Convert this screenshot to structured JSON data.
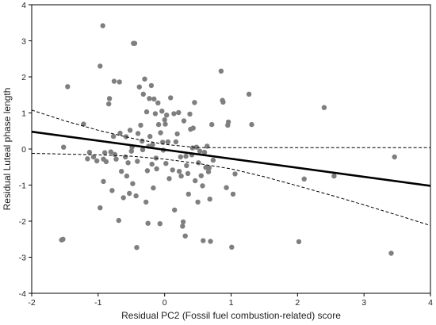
{
  "chart_data": {
    "type": "scatter",
    "xlabel": "Residual PC2 (Fossil fuel combustion-related) score",
    "ylabel": "Residual Luteal phase length",
    "xlim": [
      -2,
      4
    ],
    "ylim": [
      -4,
      4
    ],
    "x_ticks": [
      -2,
      -1,
      0,
      1,
      2,
      3,
      4
    ],
    "y_ticks": [
      -4,
      -3,
      -2,
      -1,
      0,
      1,
      2,
      3,
      4
    ],
    "grid": false,
    "point_color": "#7f7f7f",
    "regression_line": {
      "x": [
        -2,
        4
      ],
      "y": [
        0.48,
        -1.02
      ],
      "color": "#000000",
      "style": "solid"
    },
    "confidence_band": {
      "style": "dashed",
      "color": "#000000",
      "upper": {
        "x": [
          -2,
          -1.5,
          -1,
          -0.5,
          0,
          0.5,
          1,
          1.5,
          2,
          2.5,
          3,
          3.5,
          4
        ],
        "y": [
          1.08,
          0.78,
          0.52,
          0.3,
          0.13,
          0.04,
          0.04,
          0.04,
          0.04,
          0.04,
          0.04,
          0.04,
          0.04
        ]
      },
      "lower": {
        "x": [
          -2,
          -1.5,
          -1,
          -0.5,
          0,
          0.5,
          1,
          1.5,
          2,
          2.5,
          3,
          3.5,
          4
        ],
        "y": [
          -0.12,
          -0.14,
          -0.16,
          -0.2,
          -0.28,
          -0.4,
          -0.55,
          -0.77,
          -1.02,
          -1.28,
          -1.55,
          -1.83,
          -2.12
        ]
      }
    },
    "points": [
      [
        -1.55,
        -2.52
      ],
      [
        -1.53,
        -2.5
      ],
      [
        -1.52,
        0.05
      ],
      [
        -1.46,
        1.73
      ],
      [
        -1.22,
        0.69
      ],
      [
        -1.16,
        -0.27
      ],
      [
        -1.13,
        -0.09
      ],
      [
        -1.07,
        -0.22
      ],
      [
        -1.02,
        -0.33
      ],
      [
        -0.97,
        2.3
      ],
      [
        -0.97,
        -1.63
      ],
      [
        -0.93,
        3.42
      ],
      [
        -0.92,
        -0.28
      ],
      [
        -0.92,
        -0.9
      ],
      [
        -0.9,
        -0.1
      ],
      [
        -0.88,
        -0.35
      ],
      [
        -0.84,
        1.25
      ],
      [
        -0.83,
        1.4
      ],
      [
        -0.81,
        -0.08
      ],
      [
        -0.79,
        -1.15
      ],
      [
        -0.77,
        0.35
      ],
      [
        -0.76,
        1.88
      ],
      [
        -0.75,
        -0.15
      ],
      [
        -0.73,
        -0.28
      ],
      [
        -0.69,
        -1.98
      ],
      [
        -0.68,
        1.86
      ],
      [
        -0.67,
        0.44
      ],
      [
        -0.65,
        -0.62
      ],
      [
        -0.62,
        -1.35
      ],
      [
        -0.59,
        -0.22
      ],
      [
        -0.58,
        0.34
      ],
      [
        -0.57,
        -0.75
      ],
      [
        -0.55,
        -0.38
      ],
      [
        -0.53,
        -1.23
      ],
      [
        -0.52,
        0.52
      ],
      [
        -0.5,
        -0.06
      ],
      [
        -0.49,
        0.05
      ],
      [
        -0.48,
        -0.96
      ],
      [
        -0.47,
        2.93
      ],
      [
        -0.45,
        2.93
      ],
      [
        -0.43,
        -1.3
      ],
      [
        -0.42,
        -2.73
      ],
      [
        -0.41,
        -0.34
      ],
      [
        -0.4,
        0.43
      ],
      [
        -0.38,
        1.72
      ],
      [
        -0.36,
        0.66
      ],
      [
        -0.34,
        0.22
      ],
      [
        -0.33,
        -0.02
      ],
      [
        -0.32,
        1.52
      ],
      [
        -0.3,
        1.94
      ],
      [
        -0.28,
        -1.47
      ],
      [
        -0.27,
        1.03
      ],
      [
        -0.26,
        -0.6
      ],
      [
        -0.25,
        -2.06
      ],
      [
        -0.24,
        0.08
      ],
      [
        -0.23,
        1.4
      ],
      [
        -0.22,
        0.35
      ],
      [
        -0.2,
        1.76
      ],
      [
        -0.19,
        -0.42
      ],
      [
        -0.18,
        0.12
      ],
      [
        -0.17,
        -1.08
      ],
      [
        -0.16,
        1.39
      ],
      [
        -0.14,
        0.98
      ],
      [
        -0.13,
        -0.25
      ],
      [
        -0.12,
        -0.55
      ],
      [
        -0.1,
        1.28
      ],
      [
        -0.09,
        0.68
      ],
      [
        -0.07,
        -2.07
      ],
      [
        -0.06,
        0.45
      ],
      [
        -0.04,
        1.05
      ],
      [
        -0.03,
        0.19
      ],
      [
        -0.02,
        -0.03
      ],
      [
        0.0,
        0.81
      ],
      [
        0.01,
        0.69
      ],
      [
        0.02,
        -0.4
      ],
      [
        0.03,
        0.94
      ],
      [
        0.05,
        0.2
      ],
      [
        0.07,
        -0.82
      ],
      [
        0.09,
        1.42
      ],
      [
        0.12,
        -0.58
      ],
      [
        0.14,
        0.98
      ],
      [
        0.15,
        -1.69
      ],
      [
        0.17,
        0.2
      ],
      [
        0.19,
        0.42
      ],
      [
        0.21,
        1.01
      ],
      [
        0.22,
        -0.62
      ],
      [
        0.24,
        -0.22
      ],
      [
        0.25,
        -0.75
      ],
      [
        0.27,
        -2.14
      ],
      [
        0.28,
        -2.02
      ],
      [
        0.29,
        0.78
      ],
      [
        0.31,
        -2.41
      ],
      [
        0.32,
        -0.2
      ],
      [
        0.33,
        -0.46
      ],
      [
        0.35,
        -0.68
      ],
      [
        0.36,
        -1.25
      ],
      [
        0.38,
        0.97
      ],
      [
        0.39,
        0.55
      ],
      [
        0.41,
        -0.16
      ],
      [
        0.42,
        0.03
      ],
      [
        0.43,
        0.58
      ],
      [
        0.45,
        1.29
      ],
      [
        0.46,
        -0.88
      ],
      [
        0.48,
        0.05
      ],
      [
        0.5,
        -1.47
      ],
      [
        0.51,
        -0.38
      ],
      [
        0.53,
        -0.06
      ],
      [
        0.55,
        -0.74
      ],
      [
        0.57,
        -1.02
      ],
      [
        0.58,
        -2.54
      ],
      [
        0.6,
        -0.09
      ],
      [
        0.62,
        -0.51
      ],
      [
        0.64,
        0.08
      ],
      [
        0.66,
        -0.63
      ],
      [
        0.67,
        -0.52
      ],
      [
        0.68,
        -1.39
      ],
      [
        0.69,
        -2.56
      ],
      [
        0.71,
        0.68
      ],
      [
        0.73,
        -0.31
      ],
      [
        0.85,
        2.16
      ],
      [
        0.87,
        1.35
      ],
      [
        0.88,
        1.3
      ],
      [
        0.93,
        -1.07
      ],
      [
        0.95,
        0.66
      ],
      [
        0.96,
        0.75
      ],
      [
        1.01,
        -2.72
      ],
      [
        1.03,
        -1.25
      ],
      [
        1.06,
        -0.69
      ],
      [
        1.27,
        1.52
      ],
      [
        1.31,
        0.68
      ],
      [
        2.02,
        -2.57
      ],
      [
        2.1,
        -0.83
      ],
      [
        2.4,
        1.15
      ],
      [
        2.55,
        -0.75
      ],
      [
        3.41,
        -2.89
      ],
      [
        3.46,
        -0.22
      ]
    ]
  }
}
